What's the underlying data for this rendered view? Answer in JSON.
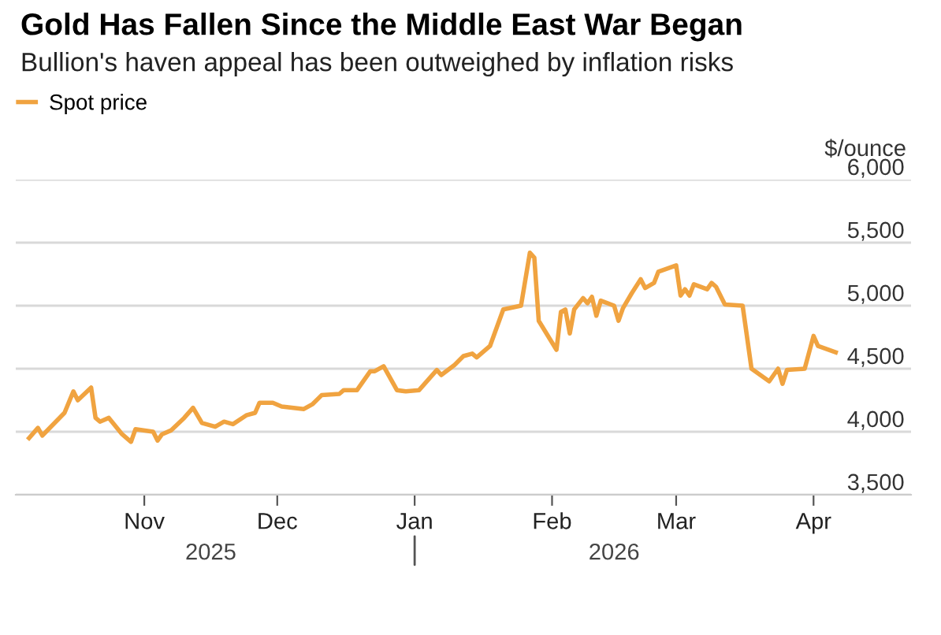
{
  "chart_data": {
    "type": "line",
    "title": "Gold Has Fallen Since the Middle East War Began",
    "subtitle": "Bullion's haven appeal has been outweighed by inflation risks",
    "ylabel": "$/ounce",
    "x": [
      "2025-10-06",
      "2025-10-08",
      "2025-10-09",
      "2025-10-14",
      "2025-10-16",
      "2025-10-17",
      "2025-10-20",
      "2025-10-21",
      "2025-10-22",
      "2025-10-24",
      "2025-10-27",
      "2025-10-29",
      "2025-10-30",
      "2025-11-03",
      "2025-11-04",
      "2025-11-05",
      "2025-11-07",
      "2025-11-10",
      "2025-11-12",
      "2025-11-14",
      "2025-11-17",
      "2025-11-19",
      "2025-11-21",
      "2025-11-24",
      "2025-11-26",
      "2025-11-27",
      "2025-11-30",
      "2025-12-02",
      "2025-12-07",
      "2025-12-09",
      "2025-12-11",
      "2025-12-15",
      "2025-12-16",
      "2025-12-19",
      "2025-12-22",
      "2025-12-23",
      "2025-12-25",
      "2025-12-28",
      "2025-12-30",
      "2026-01-02",
      "2026-01-06",
      "2026-01-07",
      "2026-01-10",
      "2026-01-12",
      "2026-01-14",
      "2026-01-15",
      "2026-01-18",
      "2026-01-21",
      "2026-01-25",
      "2026-01-27",
      "2026-01-28",
      "2026-01-29",
      "2026-02-02",
      "2026-02-03",
      "2026-02-04",
      "2026-02-05",
      "2026-02-06",
      "2026-02-08",
      "2026-02-09",
      "2026-02-10",
      "2026-02-11",
      "2026-02-12",
      "2026-02-15",
      "2026-02-16",
      "2026-02-17",
      "2026-02-19",
      "2026-02-21",
      "2026-02-22",
      "2026-02-24",
      "2026-02-25",
      "2026-03-01",
      "2026-03-02",
      "2026-03-03",
      "2026-03-04",
      "2026-03-05",
      "2026-03-08",
      "2026-03-09",
      "2026-03-10",
      "2026-03-12",
      "2026-03-16",
      "2026-03-18",
      "2026-03-22",
      "2026-03-24",
      "2026-03-25",
      "2026-03-26",
      "2026-03-30",
      "2026-04-01",
      "2026-04-02",
      "2026-04-06"
    ],
    "series": [
      {
        "name": "Spot price",
        "color": "#f0a340",
        "values": [
          3950,
          4030,
          3970,
          4150,
          4320,
          4250,
          4350,
          4110,
          4080,
          4110,
          3980,
          3920,
          4020,
          4000,
          3930,
          3980,
          4010,
          4110,
          4190,
          4070,
          4040,
          4080,
          4060,
          4130,
          4150,
          4230,
          4230,
          4200,
          4180,
          4220,
          4290,
          4300,
          4330,
          4330,
          4480,
          4480,
          4520,
          4330,
          4320,
          4330,
          4490,
          4450,
          4530,
          4600,
          4620,
          4590,
          4680,
          4970,
          5000,
          5420,
          5380,
          4880,
          4650,
          4950,
          4970,
          4780,
          4970,
          5060,
          5020,
          5070,
          4920,
          5040,
          5000,
          4880,
          4980,
          5100,
          5210,
          5140,
          5180,
          5270,
          5320,
          5080,
          5130,
          5080,
          5170,
          5130,
          5180,
          5150,
          5010,
          5000,
          4500,
          4400,
          4500,
          4380,
          4490,
          4500,
          4760,
          4680,
          4630
        ]
      }
    ],
    "xlim": [
      "2025-10-03",
      "2026-04-23"
    ],
    "xticks": [
      {
        "value": "2025-11-01",
        "label": "Nov"
      },
      {
        "value": "2025-12-01",
        "label": "Dec"
      },
      {
        "value": "2026-01-01",
        "label": "Jan"
      },
      {
        "value": "2026-02-01",
        "label": "Feb"
      },
      {
        "value": "2026-03-01",
        "label": "Mar"
      },
      {
        "value": "2026-04-01",
        "label": "Apr"
      }
    ],
    "annotations": [
      "2025",
      "2026"
    ],
    "ylim": [
      3500,
      6000
    ],
    "yticks": [
      {
        "value": 3500,
        "label": "3,500"
      },
      {
        "value": 4000,
        "label": "4,000"
      },
      {
        "value": 4500,
        "label": "4,500"
      },
      {
        "value": 5000,
        "label": "5,000"
      },
      {
        "value": 5500,
        "label": "5,500"
      },
      {
        "value": 6000,
        "label": "6,000"
      }
    ],
    "grid": "y",
    "legend": "top left",
    "line_style": "solid",
    "marker": "none"
  }
}
